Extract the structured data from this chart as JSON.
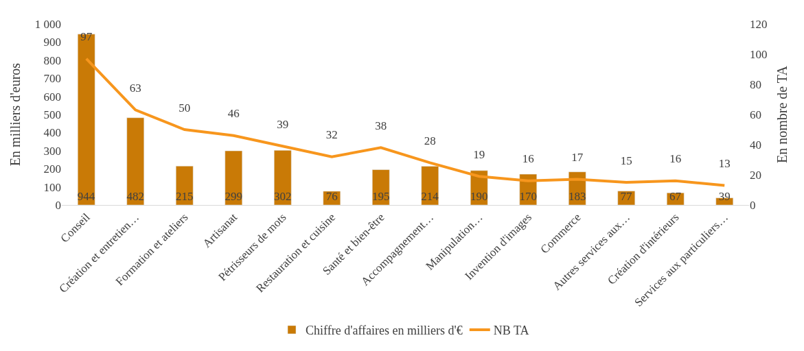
{
  "chart_data": {
    "type": "bar",
    "categories": [
      "Conseil",
      "Création et entretien…",
      "Formation et ateliers",
      "Artisanat",
      "Pétrisseurs de mots",
      "Restauration et cuisine",
      "Santé et bien-être",
      "Accompagnement…",
      "Manipulation…",
      "Invention d'images",
      "Commerce",
      "Autres services aux…",
      "Création d'intérieurs",
      "Services aux particuliers…"
    ],
    "series": [
      {
        "name": "Chiffre d'affaires en milliers d'€",
        "color": "#c97a06",
        "values": [
          944,
          482,
          215,
          299,
          302,
          76,
          195,
          214,
          190,
          170,
          183,
          77,
          67,
          39
        ]
      },
      {
        "name": "NB TA",
        "type": "line",
        "axis": "y2",
        "color": "#f7961d",
        "values": [
          97,
          63,
          50,
          46,
          39,
          32,
          38,
          28,
          19,
          16,
          17,
          15,
          16,
          13
        ]
      }
    ],
    "ylabel": "En milliers d'euros",
    "y2label": "En nombre de TA",
    "ylim": [
      0,
      1000
    ],
    "yticks": [
      0,
      100,
      200,
      300,
      400,
      500,
      600,
      700,
      800,
      900,
      {
        "value": 1000,
        "label": "1 000"
      }
    ],
    "y2lim": [
      0,
      120
    ],
    "y2ticks": [
      0,
      20,
      40,
      60,
      80,
      100,
      120
    ],
    "data_labels": true,
    "legend": "bottom",
    "marker": "none",
    "line_style": "solid"
  }
}
